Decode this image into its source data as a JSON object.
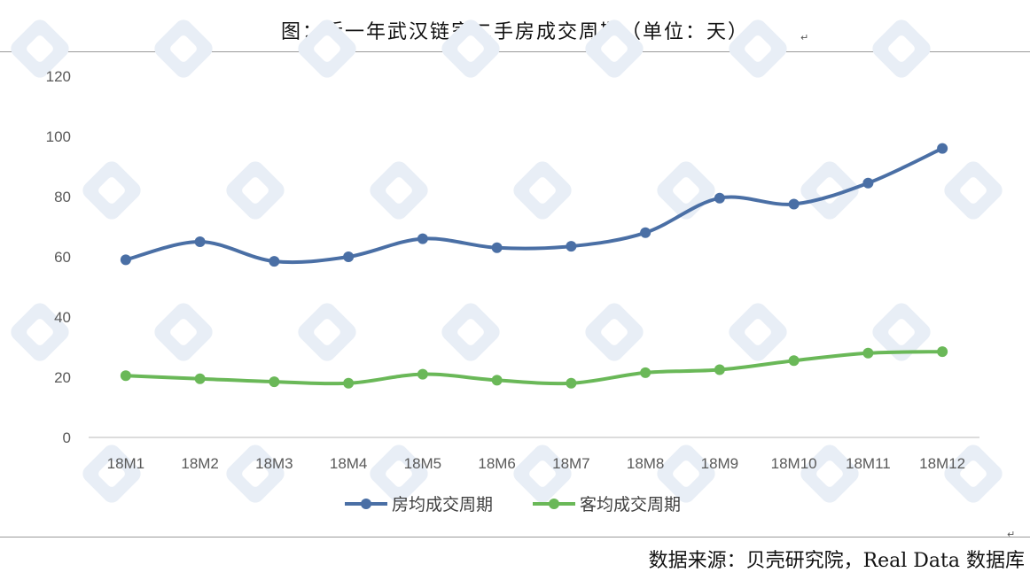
{
  "title": "图：近一年武汉链家二手房成交周期（单位：天）",
  "source": "数据来源：贝壳研究院，Real Data 数据库",
  "return_mark": "↵",
  "colors": {
    "series1": "#4a6fa5",
    "series2": "#6ab858",
    "axis": "#c8c8c8",
    "watermark": "#e8eef6"
  },
  "chart_data": {
    "type": "line",
    "smooth": true,
    "categories": [
      "18M1",
      "18M2",
      "18M3",
      "18M4",
      "18M5",
      "18M6",
      "18M7",
      "18M8",
      "18M9",
      "18M10",
      "18M11",
      "18M12"
    ],
    "series": [
      {
        "name": "房均成交周期",
        "values": [
          59,
          65,
          58.5,
          60,
          66,
          63,
          63.5,
          68,
          79.5,
          77.5,
          84.5,
          96
        ]
      },
      {
        "name": "客均成交周期",
        "values": [
          20.5,
          19.5,
          18.5,
          18,
          21,
          19,
          18,
          21.5,
          22.5,
          25.5,
          28,
          28.5
        ]
      }
    ],
    "ylim": [
      0,
      120
    ],
    "yticks": [
      0,
      20,
      40,
      60,
      80,
      100,
      120
    ],
    "grid": false,
    "legend_position": "bottom"
  }
}
